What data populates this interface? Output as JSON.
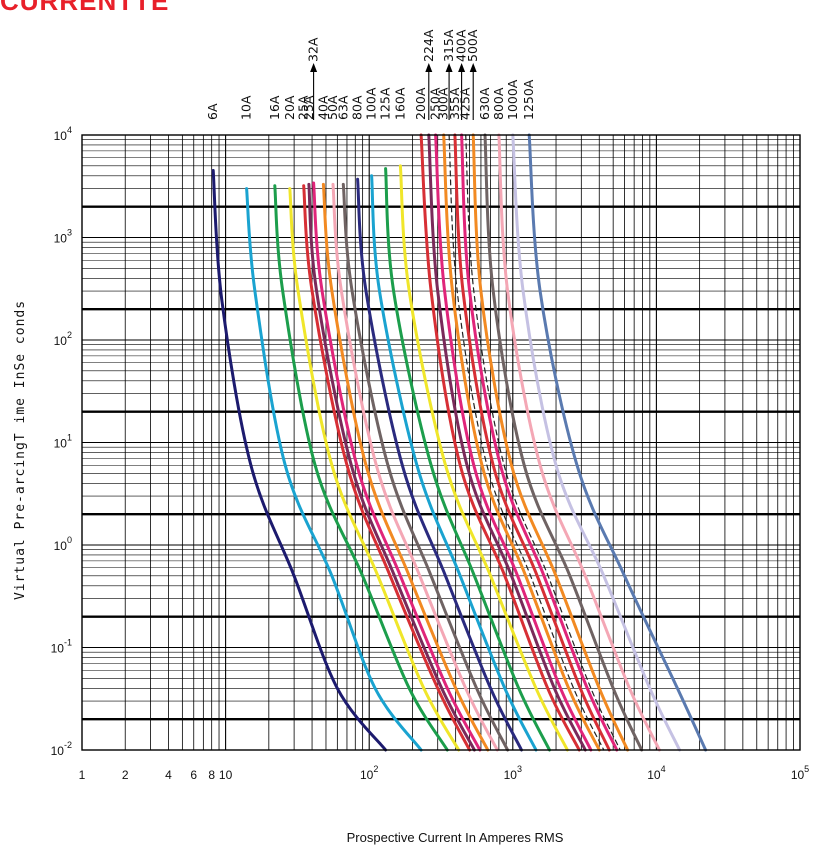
{
  "corner_text": "CURRENTTE",
  "chart_data": {
    "type": "line",
    "title": "",
    "xlabel": "Prospective   Current   In Amperes   RMS",
    "ylabel": "Virtual  Pre-arcingT  ime  InSe  conds",
    "x_scale": "log",
    "y_scale": "log",
    "xlim": [
      1,
      100000
    ],
    "ylim": [
      0.01,
      10000
    ],
    "grid": true,
    "x_tick_labels": [
      {
        "value": 1,
        "label": "1"
      },
      {
        "value": 2,
        "label": "2"
      },
      {
        "value": 4,
        "label": "4"
      },
      {
        "value": 6,
        "label": "6"
      },
      {
        "value": 8,
        "label": "8"
      },
      {
        "value": 10,
        "label": "10"
      },
      {
        "value": 100,
        "label": "10",
        "exp": "2"
      },
      {
        "value": 1000,
        "label": "10",
        "exp": "3"
      },
      {
        "value": 10000,
        "label": "10",
        "exp": "4"
      },
      {
        "value": 100000,
        "label": "10",
        "exp": "5"
      }
    ],
    "y_tick_labels": [
      {
        "value": 10000,
        "label": "10",
        "exp": "4"
      },
      {
        "value": 1000,
        "label": "10",
        "exp": "3"
      },
      {
        "value": 100,
        "label": "10",
        "exp": "2"
      },
      {
        "value": 10,
        "label": "10",
        "exp": "1"
      },
      {
        "value": 1,
        "label": "10",
        "exp": "0"
      },
      {
        "value": 0.1,
        "label": "10",
        "exp": "-1"
      },
      {
        "value": 0.01,
        "label": "10",
        "exp": "-2"
      }
    ],
    "major_y_lines": [
      2000,
      200,
      20,
      2,
      0.2,
      0.02
    ],
    "series": [
      {
        "name": "6A",
        "color": "#1c1a6e",
        "arrow": false,
        "points": [
          [
            8.2,
            4500
          ],
          [
            9.4,
            250
          ],
          [
            15,
            6
          ],
          [
            30,
            0.5
          ],
          [
            60,
            0.04
          ],
          [
            130,
            0.01
          ]
        ]
      },
      {
        "name": "10A",
        "color": "#1aa3d0",
        "arrow": false,
        "points": [
          [
            14,
            3000
          ],
          [
            16,
            300
          ],
          [
            26,
            6
          ],
          [
            55,
            0.5
          ],
          [
            110,
            0.04
          ],
          [
            230,
            0.01
          ]
        ]
      },
      {
        "name": "16A",
        "color": "#1c9e4c",
        "arrow": false,
        "points": [
          [
            22,
            3200
          ],
          [
            25,
            300
          ],
          [
            42,
            6
          ],
          [
            90,
            0.5
          ],
          [
            190,
            0.04
          ],
          [
            350,
            0.01
          ]
        ]
      },
      {
        "name": "20A",
        "color": "#f0e62a",
        "arrow": false,
        "points": [
          [
            28,
            3000
          ],
          [
            32,
            300
          ],
          [
            55,
            6
          ],
          [
            115,
            0.5
          ],
          [
            240,
            0.04
          ],
          [
            420,
            0.01
          ]
        ]
      },
      {
        "name": "25A",
        "color": "#d72f35",
        "arrow": false,
        "points": [
          [
            35,
            3200
          ],
          [
            40,
            300
          ],
          [
            70,
            6
          ],
          [
            140,
            0.5
          ],
          [
            300,
            0.04
          ],
          [
            500,
            0.01
          ]
        ]
      },
      {
        "name": "25A",
        "color": "#7a2a5a",
        "arrow": false,
        "points": [
          [
            38,
            3300
          ],
          [
            43,
            300
          ],
          [
            75,
            6
          ],
          [
            150,
            0.5
          ],
          [
            320,
            0.04
          ],
          [
            540,
            0.01
          ]
        ]
      },
      {
        "name": "32A",
        "color": "#e0257a",
        "arrow": true,
        "points": [
          [
            41,
            3400
          ],
          [
            47,
            300
          ],
          [
            82,
            6
          ],
          [
            165,
            0.5
          ],
          [
            350,
            0.04
          ],
          [
            590,
            0.01
          ]
        ]
      },
      {
        "name": "40A",
        "color": "#f28a22",
        "arrow": false,
        "points": [
          [
            48,
            3300
          ],
          [
            55,
            300
          ],
          [
            95,
            6
          ],
          [
            190,
            0.5
          ],
          [
            400,
            0.04
          ],
          [
            670,
            0.01
          ]
        ]
      },
      {
        "name": "50A",
        "color": "#f4a7b5",
        "arrow": false,
        "points": [
          [
            56,
            3300
          ],
          [
            64,
            300
          ],
          [
            112,
            6
          ],
          [
            225,
            0.5
          ],
          [
            470,
            0.04
          ],
          [
            780,
            0.01
          ]
        ]
      },
      {
        "name": "63A",
        "color": "#6f6363",
        "arrow": false,
        "points": [
          [
            66,
            3300
          ],
          [
            76,
            300
          ],
          [
            135,
            6
          ],
          [
            270,
            0.5
          ],
          [
            560,
            0.04
          ],
          [
            920,
            0.01
          ]
        ]
      },
      {
        "name": "80A",
        "color": "#2a2a7e",
        "arrow": false,
        "points": [
          [
            83,
            3700
          ],
          [
            95,
            300
          ],
          [
            170,
            6
          ],
          [
            340,
            0.5
          ],
          [
            700,
            0.04
          ],
          [
            1150,
            0.01
          ]
        ]
      },
      {
        "name": "100A",
        "color": "#1aa3d0",
        "arrow": false,
        "points": [
          [
            104,
            4000
          ],
          [
            118,
            300
          ],
          [
            215,
            6
          ],
          [
            430,
            0.5
          ],
          [
            880,
            0.04
          ],
          [
            1450,
            0.01
          ]
        ]
      },
      {
        "name": "125A",
        "color": "#1c9e4c",
        "arrow": false,
        "points": [
          [
            130,
            4700
          ],
          [
            148,
            300
          ],
          [
            270,
            6
          ],
          [
            540,
            0.5
          ],
          [
            1100,
            0.04
          ],
          [
            1800,
            0.01
          ]
        ]
      },
      {
        "name": "160A",
        "color": "#f0e62a",
        "arrow": false,
        "points": [
          [
            165,
            5000
          ],
          [
            190,
            300
          ],
          [
            340,
            6
          ],
          [
            700,
            0.5
          ],
          [
            1450,
            0.04
          ],
          [
            2400,
            0.01
          ]
        ]
      },
      {
        "name": "200A",
        "color": "#d72f35",
        "arrow": false,
        "points": [
          [
            230,
            10000
          ],
          [
            270,
            300
          ],
          [
            430,
            6
          ],
          [
            880,
            0.5
          ],
          [
            1750,
            0.04
          ],
          [
            2900,
            0.01
          ]
        ]
      },
      {
        "name": "224A",
        "color": "#7a2a5a",
        "arrow": true,
        "points": [
          [
            260,
            10000
          ],
          [
            300,
            300
          ],
          [
            480,
            6
          ],
          [
            980,
            0.5
          ],
          [
            1950,
            0.04
          ],
          [
            3200,
            0.01
          ]
        ]
      },
      {
        "name": "250A",
        "color": "#e0257a",
        "arrow": false,
        "points": [
          [
            290,
            10000
          ],
          [
            335,
            300
          ],
          [
            535,
            6
          ],
          [
            1080,
            0.5
          ],
          [
            2150,
            0.04
          ],
          [
            3500,
            0.01
          ]
        ]
      },
      {
        "name": "300A",
        "color": "#f28a22",
        "arrow": false,
        "points": [
          [
            330,
            10000
          ],
          [
            380,
            300
          ],
          [
            610,
            6
          ],
          [
            1230,
            0.5
          ],
          [
            2450,
            0.04
          ],
          [
            4000,
            0.01
          ]
        ]
      },
      {
        "name": "315A",
        "color": "#222222",
        "arrow": true,
        "dashed": true,
        "points": [
          [
            360,
            10000
          ],
          [
            410,
            300
          ],
          [
            660,
            6
          ],
          [
            1330,
            0.5
          ],
          [
            2650,
            0.04
          ],
          [
            4300,
            0.01
          ]
        ]
      },
      {
        "name": "355A",
        "color": "#d72f35",
        "arrow": false,
        "points": [
          [
            395,
            10000
          ],
          [
            450,
            300
          ],
          [
            730,
            6
          ],
          [
            1480,
            0.5
          ],
          [
            2950,
            0.04
          ],
          [
            4700,
            0.01
          ]
        ]
      },
      {
        "name": "400A",
        "color": "#e0257a",
        "arrow": true,
        "points": [
          [
            440,
            10000
          ],
          [
            500,
            300
          ],
          [
            820,
            6
          ],
          [
            1650,
            0.5
          ],
          [
            3300,
            0.04
          ],
          [
            5300,
            0.01
          ]
        ]
      },
      {
        "name": "425A",
        "color": "#222222",
        "arrow": false,
        "dashed": true,
        "points": [
          [
            470,
            10000
          ],
          [
            535,
            300
          ],
          [
            870,
            6
          ],
          [
            1760,
            0.5
          ],
          [
            3500,
            0.04
          ],
          [
            5600,
            0.01
          ]
        ]
      },
      {
        "name": "500A",
        "color": "#f28a22",
        "arrow": true,
        "points": [
          [
            530,
            10000
          ],
          [
            600,
            300
          ],
          [
            980,
            6
          ],
          [
            2000,
            0.5
          ],
          [
            4000,
            0.04
          ],
          [
            6300,
            0.01
          ]
        ]
      },
      {
        "name": "630A",
        "color": "#6f6363",
        "arrow": false,
        "points": [
          [
            640,
            10000
          ],
          [
            730,
            300
          ],
          [
            1200,
            6
          ],
          [
            2500,
            0.5
          ],
          [
            5000,
            0.04
          ],
          [
            7900,
            0.01
          ]
        ]
      },
      {
        "name": "800A",
        "color": "#f4a7b5",
        "arrow": false,
        "points": [
          [
            800,
            10000
          ],
          [
            920,
            300
          ],
          [
            1550,
            6
          ],
          [
            3200,
            0.5
          ],
          [
            6500,
            0.04
          ],
          [
            10500,
            0.01
          ]
        ]
      },
      {
        "name": "1000A",
        "color": "#c5c1e3",
        "arrow": false,
        "points": [
          [
            1000,
            10000
          ],
          [
            1180,
            300
          ],
          [
            2000,
            6
          ],
          [
            4300,
            0.5
          ],
          [
            9000,
            0.04
          ],
          [
            14500,
            0.01
          ]
        ]
      },
      {
        "name": "1250A",
        "color": "#5a7ab0",
        "arrow": false,
        "points": [
          [
            1300,
            10000
          ],
          [
            1550,
            300
          ],
          [
            2800,
            6
          ],
          [
            6000,
            0.5
          ],
          [
            14000,
            0.04
          ],
          [
            22000,
            0.01
          ]
        ]
      }
    ]
  }
}
